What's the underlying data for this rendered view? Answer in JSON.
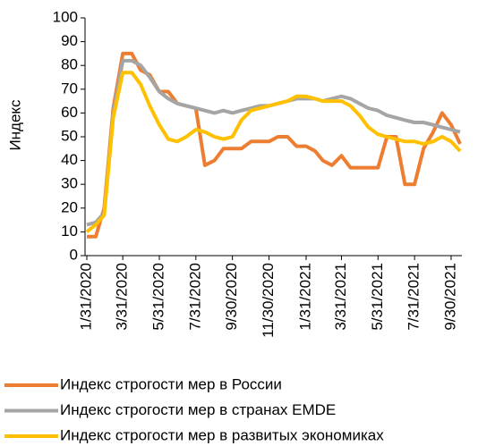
{
  "chart_data": {
    "type": "line",
    "ylabel": "Индекс",
    "x": [
      "1/31/2020",
      "2/15/2020",
      "2/29/2020",
      "3/15/2020",
      "3/31/2020",
      "4/15/2020",
      "4/30/2020",
      "5/15/2020",
      "5/31/2020",
      "6/15/2020",
      "6/30/2020",
      "7/15/2020",
      "7/31/2020",
      "8/15/2020",
      "8/31/2020",
      "9/15/2020",
      "9/30/2020",
      "10/15/2020",
      "10/31/2020",
      "11/15/2020",
      "11/30/2020",
      "12/15/2020",
      "12/31/2020",
      "1/15/2021",
      "1/31/2021",
      "2/15/2021",
      "2/28/2021",
      "3/15/2021",
      "3/31/2021",
      "4/15/2021",
      "4/30/2021",
      "5/15/2021",
      "5/31/2021",
      "6/15/2021",
      "6/30/2021",
      "7/15/2021",
      "7/31/2021",
      "8/15/2021",
      "8/31/2021",
      "9/15/2021",
      "9/30/2021",
      "10/15/2021"
    ],
    "series": [
      {
        "name": "Индекс строгости мер в России",
        "color": "#ed7d31",
        "values": [
          8,
          8,
          20,
          62,
          85,
          85,
          78,
          76,
          69,
          69,
          64,
          63,
          62,
          38,
          40,
          45,
          45,
          45,
          48,
          48,
          48,
          50,
          50,
          46,
          46,
          44,
          40,
          38,
          42,
          37,
          37,
          37,
          37,
          50,
          50,
          30,
          30,
          45,
          52,
          60,
          55,
          47
        ]
      },
      {
        "name": "Индекс строгости мер в странах EMDE",
        "color": "#a5a5a5",
        "values": [
          13,
          14,
          18,
          60,
          82,
          82,
          80,
          75,
          69,
          66,
          64,
          63,
          62,
          61,
          60,
          61,
          60,
          61,
          62,
          63,
          63,
          64,
          65,
          66,
          66,
          66,
          65,
          66,
          67,
          66,
          64,
          62,
          61,
          59,
          58,
          57,
          56,
          56,
          55,
          54,
          53,
          52
        ]
      },
      {
        "name": "Индекс строгости мер в развитых экономиках",
        "color": "#ffc000",
        "values": [
          10,
          13,
          17,
          58,
          77,
          77,
          72,
          63,
          55,
          49,
          48,
          50,
          53,
          52,
          50,
          49,
          50,
          57,
          61,
          62,
          63,
          64,
          65,
          67,
          67,
          66,
          65,
          65,
          65,
          63,
          59,
          54,
          51,
          50,
          49,
          48,
          48,
          47,
          48,
          50,
          48,
          44
        ]
      }
    ],
    "xlim": [
      "1/31/2020",
      "10/15/2021"
    ],
    "xticks": [
      "1/31/2020",
      "3/31/2020",
      "5/31/2020",
      "7/31/2020",
      "9/30/2020",
      "11/30/2020",
      "1/31/2021",
      "3/31/2021",
      "5/31/2021",
      "7/31/2021",
      "9/30/2021"
    ],
    "ylim": [
      0,
      100
    ],
    "yticks": [
      0,
      10,
      20,
      30,
      40,
      50,
      60,
      70,
      80,
      90,
      100
    ],
    "grid": false,
    "legend": "bottom"
  }
}
